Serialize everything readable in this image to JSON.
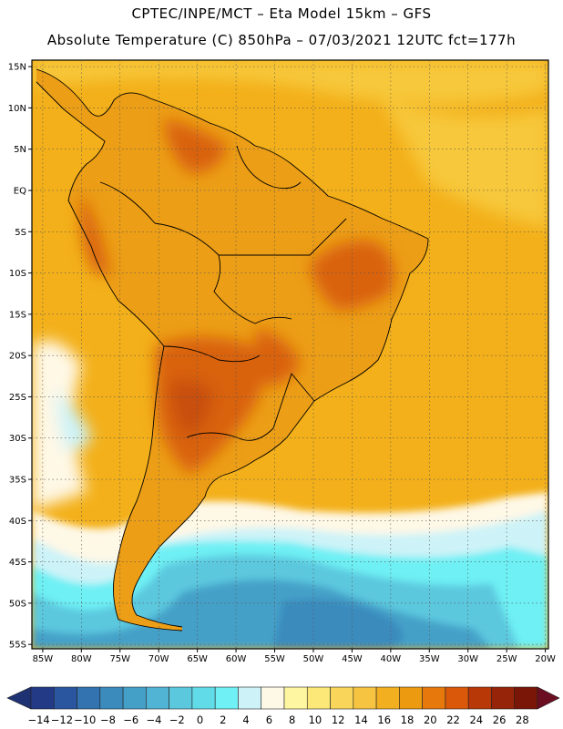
{
  "header": {
    "title_line1": "CPTEC/INPE/MCT –  Eta Model 15km – GFS",
    "title_line2": "Absolute Temperature (C) 850hPa – 07/03/2021 12UTC fct=177h"
  },
  "map": {
    "lat_labels": [
      "15N",
      "10N",
      "5N",
      "EQ",
      "5S",
      "10S",
      "15S",
      "20S",
      "25S",
      "30S",
      "35S",
      "40S",
      "45S",
      "50S",
      "55S"
    ],
    "lon_labels": [
      "85W",
      "80W",
      "75W",
      "70W",
      "65W",
      "60W",
      "55W",
      "50W",
      "45W",
      "40W",
      "35W",
      "30W",
      "25W",
      "20W"
    ]
  },
  "colorbar": {
    "labels": [
      "-14",
      "-12",
      "-10",
      "-8",
      "-6",
      "-4",
      "-2",
      "0",
      "2",
      "4",
      "6",
      "8",
      "10",
      "12",
      "14",
      "16",
      "18",
      "20",
      "22",
      "24",
      "26",
      "28"
    ],
    "colors": [
      "#233b87",
      "#2a56a0",
      "#3273b0",
      "#3b8bbd",
      "#45a0c8",
      "#52b4d4",
      "#5cc8de",
      "#62dbe8",
      "#6ef0f4",
      "#cdf3f8",
      "#fef8e6",
      "#fef6a0",
      "#fce878",
      "#f9d65a",
      "#f6c440",
      "#f2b020",
      "#ec9a10",
      "#e6780c",
      "#d9580a",
      "#b83808",
      "#962408",
      "#7a1608"
    ],
    "under_color": "#1e3172",
    "over_color": "#6b0e22"
  },
  "palette": {
    "ocean_base": "#f3b01a",
    "ocean_north": "#f7c83a",
    "land_base": "#ec9e16",
    "land_hot": "#d9620e",
    "land_hotter": "#c8500a",
    "south_cold1": "#fef8e6",
    "south_cold2": "#cdf3f8",
    "south_cold3": "#6ef0f4",
    "south_cold4": "#5cc8de",
    "south_cold5": "#45a0c8",
    "south_cold6": "#3b8bbd"
  }
}
